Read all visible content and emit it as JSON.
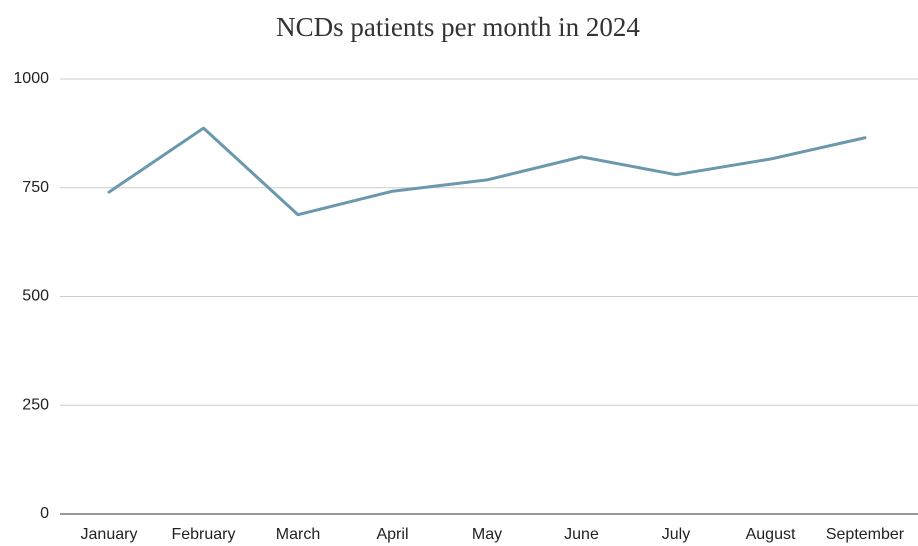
{
  "chart_data": {
    "type": "line",
    "title": "NCDs patients per month in 2024",
    "categories": [
      "January",
      "February",
      "March",
      "April",
      "May",
      "June",
      "July",
      "August",
      "September"
    ],
    "values": [
      740,
      887,
      688,
      742,
      768,
      821,
      780,
      816,
      865
    ],
    "color": "#6b98ad",
    "ylim": [
      0,
      1000
    ],
    "yticks": [
      0,
      250,
      500,
      750,
      1000
    ],
    "grid": true
  }
}
